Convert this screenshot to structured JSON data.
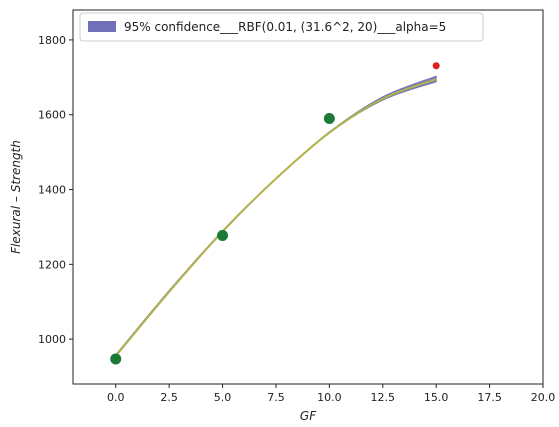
{
  "chart_data": {
    "type": "line",
    "xlabel": "GF",
    "ylabel": "Flexural – Strength",
    "xlim": [
      -2,
      20
    ],
    "ylim": [
      880,
      1880
    ],
    "xticks": [
      "0.0",
      "2.5",
      "5.0",
      "7.5",
      "10.0",
      "12.5",
      "15.0",
      "17.5",
      "20.0"
    ],
    "yticks": [
      "1000",
      "1200",
      "1400",
      "1600",
      "1800"
    ],
    "grid": false,
    "legend_position": "top-left",
    "legend_entries": [
      "95% confidence___RBF(0.01, (31.6^2, 20)___alpha=5"
    ],
    "confidence_band": {
      "color": "#7070b8",
      "x": [
        0,
        2.5,
        5,
        7.5,
        10,
        12.5,
        15
      ],
      "lower": [
        953,
        1125,
        1286,
        1428,
        1551,
        1639,
        1688
      ],
      "upper": [
        958,
        1130,
        1290,
        1430,
        1554,
        1648,
        1703
      ]
    },
    "mean_line": {
      "color": "#b3b34a",
      "x": [
        0,
        2.5,
        5,
        7.5,
        10,
        12.5,
        15
      ],
      "y": [
        955,
        1127,
        1288,
        1429,
        1552,
        1643,
        1695
      ]
    },
    "observed_points": {
      "color": "#1a7a36",
      "x": [
        0,
        5,
        10
      ],
      "y": [
        947,
        1277,
        1590
      ]
    },
    "highlight_point": {
      "color": "#e02020",
      "x": 15,
      "y": 1731
    }
  }
}
